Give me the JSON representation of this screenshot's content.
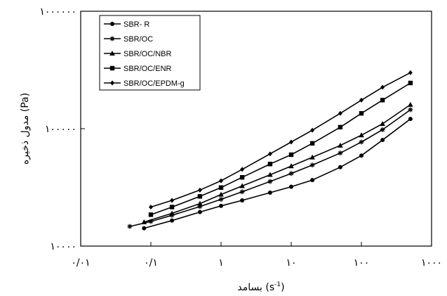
{
  "chart_data": {
    "type": "line",
    "xscale": "log",
    "yscale": "log",
    "xlim": [
      0.01,
      1000
    ],
    "ylim": [
      10000,
      1000000
    ],
    "xlabel": {
      "text": "بسامد",
      "unit_base": "s",
      "unit_exp": "-1"
    },
    "ylabel": "مدول ذخیره (Pa)",
    "x_tick_labels": [
      "۰/۰۱",
      "۰/۱",
      "۱",
      "۱۰",
      "۱۰۰",
      "۱۰۰۰"
    ],
    "y_tick_labels": [
      "۱۰۰۰۰",
      "۱۰۰۰۰۰",
      "۱۰۰۰۰۰۰"
    ],
    "grid": false,
    "legend_position": "top-left",
    "series": [
      {
        "name": "SBR- R",
        "marker": "circle",
        "x": [
          0.08,
          0.2,
          0.5,
          1,
          2,
          5,
          10,
          20,
          50,
          100,
          200,
          500
        ],
        "y": [
          14200,
          16500,
          19500,
          22000,
          24500,
          28500,
          32000,
          36500,
          47000,
          59000,
          80000,
          121000
        ]
      },
      {
        "name": "SBR/OC",
        "marker": "star",
        "x": [
          0.05,
          0.1,
          0.2,
          0.5,
          1,
          2,
          5,
          10,
          20,
          50,
          100,
          200,
          500
        ],
        "y": [
          14700,
          16200,
          18300,
          21700,
          25000,
          29000,
          35500,
          41500,
          49000,
          62000,
          77000,
          98000,
          145000
        ]
      },
      {
        "name": "SBR/OC/NBR",
        "marker": "triangle",
        "x": [
          0.08,
          0.2,
          0.5,
          1,
          2,
          5,
          10,
          20,
          50,
          100,
          200,
          500
        ],
        "y": [
          16000,
          19000,
          23000,
          27500,
          32500,
          40500,
          48000,
          57000,
          72000,
          88000,
          110000,
          160000
        ]
      },
      {
        "name": "SBR/OC/ENR",
        "marker": "square",
        "x": [
          0.1,
          0.2,
          0.5,
          1,
          2,
          5,
          10,
          20,
          50,
          100,
          200,
          500
        ],
        "y": [
          18500,
          21500,
          26500,
          31500,
          38500,
          50000,
          60000,
          75000,
          103000,
          135000,
          175000,
          245000
        ]
      },
      {
        "name": "SBR/OC/EPDM-g",
        "marker": "diamond",
        "x": [
          0.1,
          0.2,
          0.5,
          1,
          2,
          5,
          10,
          20,
          50,
          100,
          200,
          500
        ],
        "y": [
          21500,
          24500,
          30000,
          36000,
          45000,
          61000,
          77000,
          97000,
          135000,
          175000,
          225000,
          300000
        ]
      }
    ]
  }
}
